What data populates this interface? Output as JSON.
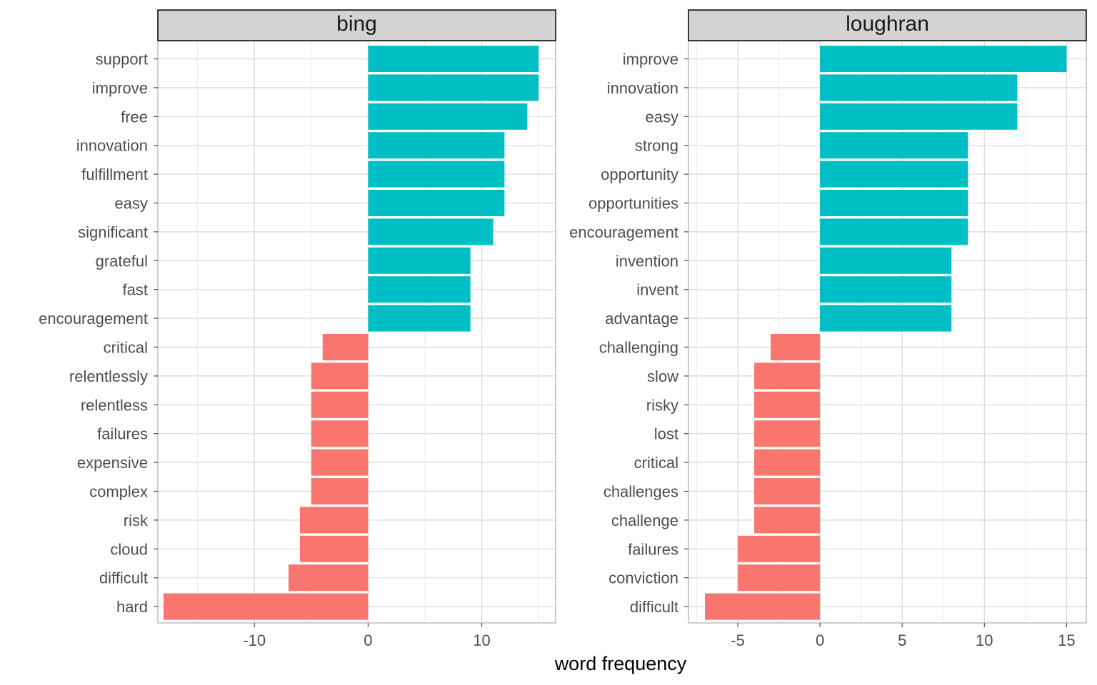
{
  "chart_data": {
    "type": "bar",
    "orientation": "horizontal",
    "xlabel": "word frequency",
    "colors": {
      "positive": "#00BFC4",
      "negative": "#F8766D",
      "strip_bg": "#D3D3D3",
      "grid": "#D9D9D9"
    },
    "grid": true,
    "panels": [
      {
        "name": "bing",
        "xlim": [
          -18.5,
          16.5
        ],
        "xticks": [
          -10,
          0,
          10
        ],
        "xtick_labels": [
          "-10",
          "0",
          "10"
        ],
        "categories": [
          "support",
          "improve",
          "free",
          "innovation",
          "fulfillment",
          "easy",
          "significant",
          "grateful",
          "fast",
          "encouragement",
          "critical",
          "relentlessly",
          "relentless",
          "failures",
          "expensive",
          "complex",
          "risk",
          "cloud",
          "difficult",
          "hard"
        ],
        "values": [
          15,
          15,
          14,
          12,
          12,
          12,
          11,
          9,
          9,
          9,
          -4,
          -5,
          -5,
          -5,
          -5,
          -5,
          -6,
          -6,
          -7,
          -18
        ]
      },
      {
        "name": "loughran",
        "xlim": [
          -8,
          16.2
        ],
        "xticks": [
          -5,
          0,
          5,
          10,
          15
        ],
        "xtick_labels": [
          "-5",
          "0",
          "5",
          "10",
          "15"
        ],
        "categories": [
          "improve",
          "innovation",
          "easy",
          "strong",
          "opportunity",
          "opportunities",
          "encouragement",
          "invention",
          "invent",
          "advantage",
          "challenging",
          "slow",
          "risky",
          "lost",
          "critical",
          "challenges",
          "challenge",
          "failures",
          "conviction",
          "difficult"
        ],
        "values": [
          15,
          12,
          12,
          9,
          9,
          9,
          9,
          8,
          8,
          8,
          -3,
          -4,
          -4,
          -4,
          -4,
          -4,
          -4,
          -5,
          -5,
          -7
        ]
      }
    ]
  }
}
